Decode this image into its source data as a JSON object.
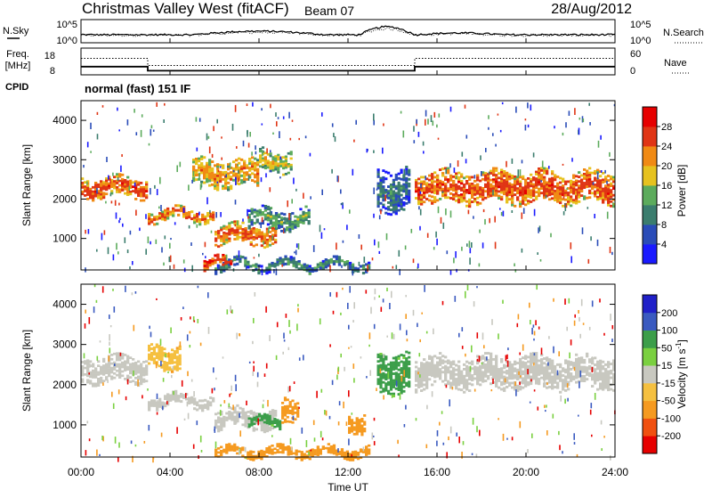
{
  "header": {
    "site": "Christmas Valley West (fitACF)",
    "beam": "Beam 07",
    "date": "28/Aug/2012"
  },
  "nsky_panel": {
    "left_label": "N.Sky",
    "right_label": "N.Search",
    "left_ticks": [
      "10^5",
      "10^0"
    ],
    "right_ticks": [
      "10^5",
      "10^0"
    ]
  },
  "freq_panel": {
    "left_label_1": "Freq.",
    "left_label_2": "[MHz]",
    "left_ticks": [
      "18",
      "8"
    ],
    "right_label": "Nave",
    "right_ticks": [
      "60",
      "0"
    ],
    "freq_mhz": [
      {
        "t": 0,
        "v": 11.2
      },
      {
        "t": 3,
        "v": 11.2
      },
      {
        "t": 3,
        "v": 9.6
      },
      {
        "t": 15,
        "v": 9.6
      },
      {
        "t": 15,
        "v": 11.2
      },
      {
        "t": 24,
        "v": 11.2
      }
    ],
    "nave": [
      {
        "t": 0,
        "v": 37
      },
      {
        "t": 3,
        "v": 37
      },
      {
        "t": 3,
        "v": 21
      },
      {
        "t": 15,
        "v": 21
      },
      {
        "t": 15,
        "v": 37
      },
      {
        "t": 24,
        "v": 37
      }
    ]
  },
  "cpid": {
    "label": "CPID",
    "mode": "normal (fast) 151 IF"
  },
  "power_panel": {
    "ylabel": "Slant Range [km]",
    "yticks": [
      {
        "v": 1000,
        "label": "1000"
      },
      {
        "v": 2000,
        "label": "2000"
      },
      {
        "v": 3000,
        "label": "3000"
      },
      {
        "v": 4000,
        "label": "4000"
      }
    ],
    "colorbar": {
      "label": "Power [dB]",
      "ticks": [
        "4",
        "8",
        "12",
        "16",
        "20",
        "24",
        "28"
      ],
      "colors": [
        "#1a1aff",
        "#2a4cb8",
        "#3b7d6e",
        "#5cab5c",
        "#e6c21f",
        "#f08a14",
        "#e03515",
        "#e60000"
      ]
    }
  },
  "velocity_panel": {
    "ylabel": "Slant Range [km]",
    "yticks": [
      {
        "v": 1000,
        "label": "1000"
      },
      {
        "v": 2000,
        "label": "2000"
      },
      {
        "v": 3000,
        "label": "3000"
      },
      {
        "v": 4000,
        "label": "4000"
      }
    ],
    "colorbar": {
      "label": "Velocity [m s",
      "label_sup": "-1",
      "label_end": "]",
      "ticks": [
        "-200",
        "-100",
        "-50",
        "-15",
        "15",
        "50",
        "100",
        "200"
      ],
      "colors": [
        "#e60000",
        "#f05010",
        "#f59a20",
        "#f5c040",
        "#c8c8c0",
        "#7ad040",
        "#3c9e4a",
        "#3a5ac0",
        "#2020c8"
      ]
    }
  },
  "xaxis": {
    "label": "Time UT",
    "ticks": [
      {
        "t": 0,
        "label": "00:00"
      },
      {
        "t": 4,
        "label": "04:00"
      },
      {
        "t": 8,
        "label": "08:00"
      },
      {
        "t": 12,
        "label": "12:00"
      },
      {
        "t": 16,
        "label": "16:00"
      },
      {
        "t": 20,
        "label": "20:00"
      },
      {
        "t": 24,
        "label": "24:00"
      }
    ]
  },
  "chart_data": [
    {
      "type": "heatmap",
      "title": "Christmas Valley West (fitACF) Beam 07 28/Aug/2012",
      "xlabel": "Time UT",
      "ylabel": "Slant Range [km]",
      "xlim": [
        0,
        24
      ],
      "ylim": [
        200,
        4500
      ],
      "quantity": "Power [dB]",
      "colorbar_ticks": [
        4,
        8,
        12,
        16,
        20,
        24,
        28
      ],
      "bands": [
        {
          "t0": 0,
          "t1": 3,
          "r0": 2050,
          "r1": 2550,
          "value": 26
        },
        {
          "t0": 3,
          "t1": 6,
          "r0": 1450,
          "r1": 1750,
          "value": 24
        },
        {
          "t0": 6,
          "t1": 8.8,
          "r0": 850,
          "r1": 1350,
          "value": 25
        },
        {
          "t0": 7.5,
          "t1": 10.3,
          "r0": 1250,
          "r1": 1750,
          "value": 14
        },
        {
          "t0": 5,
          "t1": 8,
          "r0": 2300,
          "r1": 3000,
          "value": 22
        },
        {
          "t0": 8,
          "t1": 9.5,
          "r0": 2700,
          "r1": 3250,
          "value": 18
        },
        {
          "t0": 13.3,
          "t1": 14.8,
          "r0": 1700,
          "r1": 2800,
          "value": 10
        },
        {
          "t0": 15,
          "t1": 24,
          "r0": 1900,
          "r1": 2700,
          "value": 26
        },
        {
          "t0": 6,
          "t1": 13,
          "r0": 200,
          "r1": 450,
          "value": 12
        },
        {
          "t0": 5.5,
          "t1": 6.8,
          "r0": 200,
          "r1": 500,
          "value": 28
        }
      ]
    },
    {
      "type": "heatmap",
      "title": "Christmas Valley West (fitACF) Beam 07 28/Aug/2012",
      "xlabel": "Time UT",
      "ylabel": "Slant Range [km]",
      "xlim": [
        0,
        24
      ],
      "ylim": [
        200,
        4500
      ],
      "quantity": "Velocity [m s-1]",
      "colorbar_ticks": [
        -200,
        -100,
        -50,
        -15,
        15,
        50,
        100,
        200
      ],
      "bands": [
        {
          "t0": 0,
          "t1": 3,
          "r0": 2050,
          "r1": 2700,
          "value": 0
        },
        {
          "t0": 3,
          "t1": 6,
          "r0": 1450,
          "r1": 1750,
          "value": 0
        },
        {
          "t0": 6,
          "t1": 8.8,
          "r0": 900,
          "r1": 1400,
          "value": 0
        },
        {
          "t0": 7.5,
          "t1": 9,
          "r0": 950,
          "r1": 1200,
          "value": 60
        },
        {
          "t0": 9,
          "t1": 9.8,
          "r0": 950,
          "r1": 1600,
          "value": -80
        },
        {
          "t0": 3,
          "t1": 4.5,
          "r0": 2400,
          "r1": 3000,
          "value": -40
        },
        {
          "t0": 13.3,
          "t1": 14.8,
          "r0": 1800,
          "r1": 2800,
          "value": 60
        },
        {
          "t0": 12,
          "t1": 12.8,
          "r0": 800,
          "r1": 1300,
          "value": -80
        },
        {
          "t0": 15,
          "t1": 24,
          "r0": 1900,
          "r1": 2700,
          "value": 0
        },
        {
          "t0": 6,
          "t1": 13,
          "r0": 200,
          "r1": 450,
          "value": -60
        }
      ]
    }
  ]
}
